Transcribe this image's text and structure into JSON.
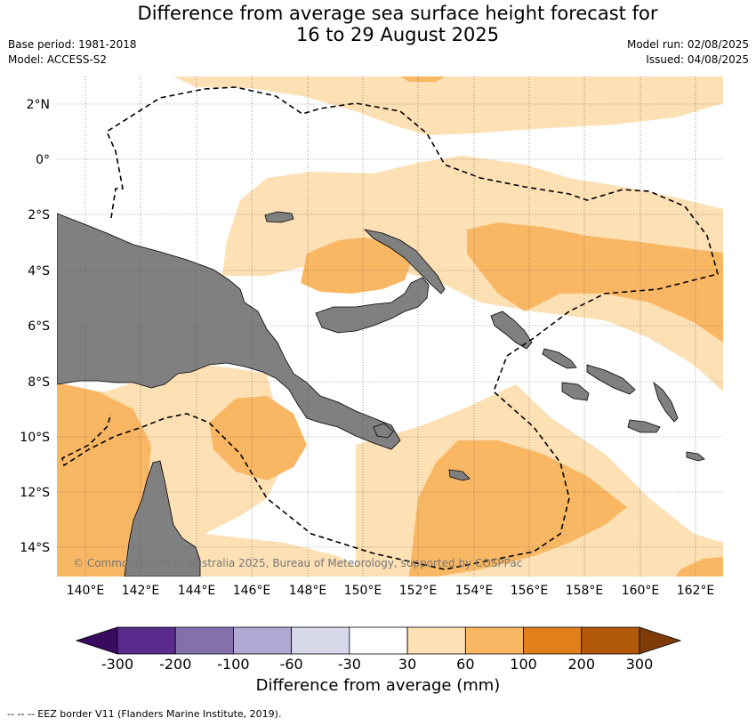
{
  "title": {
    "line1": "Difference from average sea surface height forecast for",
    "line2": "16 to 29 August 2025"
  },
  "meta_left": {
    "base_period": "Base period: 1981-2018",
    "model": "Model: ACCESS-S2"
  },
  "meta_right": {
    "model_run": "Model run: 02/08/2025",
    "issued": "Issued: 04/08/2025"
  },
  "map": {
    "lat_labels": [
      "2°N",
      "0°",
      "2°S",
      "4°S",
      "6°S",
      "8°S",
      "10°S",
      "12°S",
      "14°S"
    ],
    "lon_labels": [
      "140°E",
      "142°E",
      "144°E",
      "146°E",
      "148°E",
      "150°E",
      "152°E",
      "154°E",
      "156°E",
      "158°E",
      "160°E",
      "162°E"
    ],
    "copyright": "© Commonwealth of Australia 2025, Bureau of Meteorology, supported by COSPPac",
    "colors": {
      "land": "#808080",
      "water": "#ffffff",
      "grid": "#555555"
    }
  },
  "colorbar": {
    "ticks": [
      "-300",
      "-200",
      "-100",
      "-60",
      "-30",
      "30",
      "60",
      "100",
      "200",
      "300"
    ],
    "colors": [
      "#5a2a8c",
      "#8470ac",
      "#b2a8d4",
      "#d8daec",
      "#ffffff",
      "#fde0b4",
      "#f9b764",
      "#e17f1a",
      "#b25809"
    ],
    "low_extend_color": "#3a0a5e",
    "high_extend_color": "#7f3b08",
    "label": "Difference from average (mm)"
  },
  "footnote": "--  --  -- EEZ border V11 (Flanders Marine Institute, 2019)."
}
